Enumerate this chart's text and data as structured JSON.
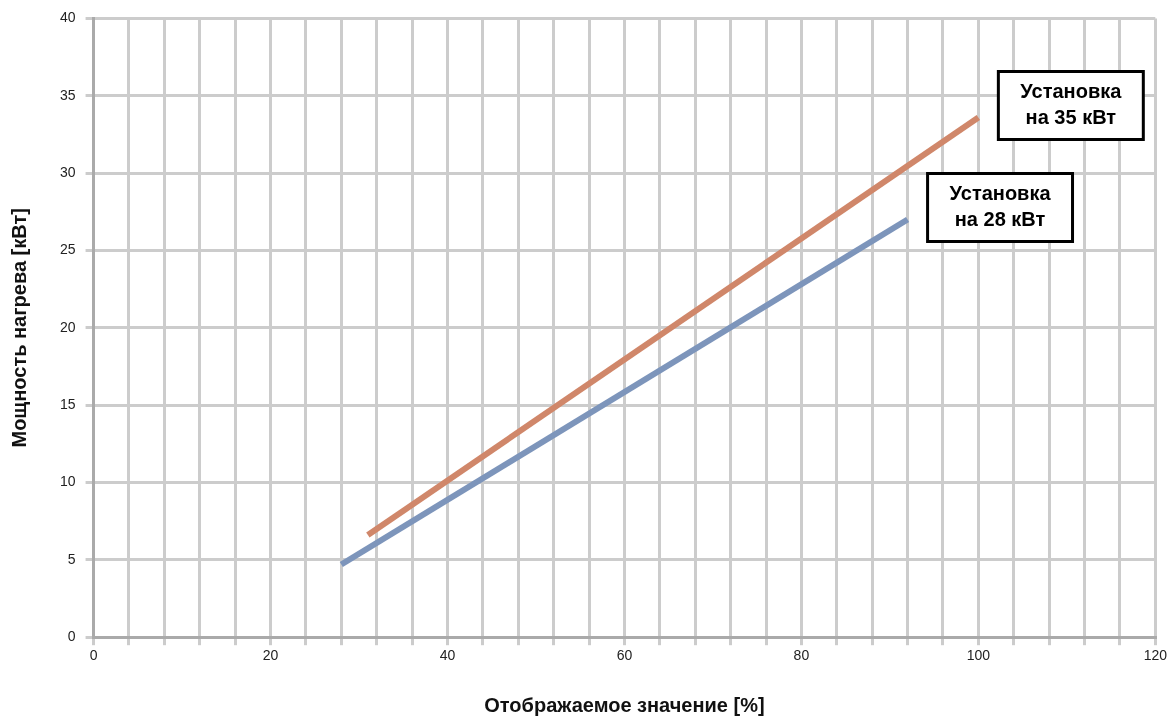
{
  "chart_data": {
    "type": "line",
    "xlabel": "Отображаемое значение [%]",
    "ylabel": "Мощность нагрева [кВт]",
    "xlim": [
      0,
      120
    ],
    "xticks": [
      0,
      {
        "value": 4,
        "label": null
      },
      {
        "value": 8,
        "label": null
      },
      {
        "value": 12,
        "label": null
      },
      {
        "value": 16,
        "label": null
      },
      20,
      {
        "value": 24,
        "label": null
      },
      {
        "value": 28,
        "label": null
      },
      {
        "value": 32,
        "label": null
      },
      {
        "value": 36,
        "label": null
      },
      40,
      {
        "value": 44,
        "label": null
      },
      {
        "value": 48,
        "label": null
      },
      {
        "value": 52,
        "label": null
      },
      {
        "value": 56,
        "label": null
      },
      60,
      {
        "value": 64,
        "label": null
      },
      {
        "value": 68,
        "label": null
      },
      {
        "value": 72,
        "label": null
      },
      {
        "value": 76,
        "label": null
      },
      80,
      {
        "value": 84,
        "label": null
      },
      {
        "value": 88,
        "label": null
      },
      {
        "value": 92,
        "label": null
      },
      {
        "value": 96,
        "label": null
      },
      100,
      {
        "value": 104,
        "label": null
      },
      {
        "value": 108,
        "label": null
      },
      {
        "value": 112,
        "label": null
      },
      {
        "value": 116,
        "label": null
      },
      120
    ],
    "ylim": [
      0,
      40
    ],
    "yticks": [
      0,
      5,
      10,
      15,
      20,
      25,
      30,
      35,
      40
    ],
    "grid": true,
    "legend": false,
    "marker": "none",
    "line_style": "solid",
    "series": [
      {
        "color": "#d0876a",
        "x": [
          31,
          100
        ],
        "values": [
          6.6,
          33.6
        ]
      },
      {
        "color": "#7d95bb",
        "x": [
          28,
          92
        ],
        "values": [
          4.7,
          27
        ]
      }
    ],
    "annotations": [
      {
        "text": "Установка\nна 35 кВт",
        "x": 100,
        "y": 33.6
      },
      {
        "text": "Установка\nна 28 кВт",
        "x": 92,
        "y": 27
      }
    ]
  }
}
